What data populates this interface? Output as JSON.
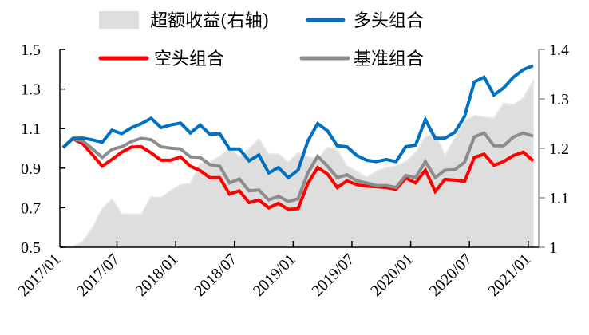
{
  "chart_data": {
    "type": "line",
    "title": "",
    "xlabel": "",
    "ylabel": "",
    "x": [
      "2017/01",
      "2017/02",
      "2017/03",
      "2017/04",
      "2017/05",
      "2017/06",
      "2017/07",
      "2017/08",
      "2017/09",
      "2017/10",
      "2017/11",
      "2017/12",
      "2018/01",
      "2018/02",
      "2018/03",
      "2018/04",
      "2018/05",
      "2018/06",
      "2018/07",
      "2018/08",
      "2018/09",
      "2018/10",
      "2018/11",
      "2018/12",
      "2019/01",
      "2019/02",
      "2019/03",
      "2019/04",
      "2019/05",
      "2019/06",
      "2019/07",
      "2019/08",
      "2019/09",
      "2019/10",
      "2019/11",
      "2019/12",
      "2020/01",
      "2020/02",
      "2020/03",
      "2020/04",
      "2020/05",
      "2020/06",
      "2020/07",
      "2020/08",
      "2020/09",
      "2020/10",
      "2020/11",
      "2020/12",
      "2021/01"
    ],
    "x_tick_labels": [
      "2017/01",
      "2017/07",
      "2018/01",
      "2018/07",
      "2019/01",
      "2019/07",
      "2020/01",
      "2020/07",
      "2021/01"
    ],
    "y_left": {
      "range": [
        0.5,
        1.5
      ],
      "ticks": [
        "0.5",
        "0.7",
        "0.9",
        "1.1",
        "1.3",
        "1.5"
      ]
    },
    "y_right": {
      "range": [
        1.0,
        1.4
      ],
      "ticks": [
        "1",
        "1.1",
        "1.2",
        "1.3",
        "1.4"
      ]
    },
    "grid": false,
    "legend_placement": "top",
    "series": [
      {
        "name": "超额收益(右轴)",
        "type": "area",
        "axis": "right",
        "color": "#dedede",
        "values": [
          1.0,
          1.001,
          1.011,
          1.038,
          1.078,
          1.097,
          1.067,
          1.067,
          1.067,
          1.102,
          1.1,
          1.114,
          1.126,
          1.129,
          1.169,
          1.172,
          1.183,
          1.199,
          1.183,
          1.199,
          1.218,
          1.188,
          1.188,
          1.172,
          1.191,
          1.183,
          1.177,
          1.202,
          1.196,
          1.164,
          1.153,
          1.141,
          1.153,
          1.161,
          1.164,
          1.173,
          1.191,
          1.223,
          1.229,
          1.185,
          1.22,
          1.255,
          1.266,
          1.263,
          1.261,
          1.291,
          1.288,
          1.301,
          1.336
        ]
      },
      {
        "name": "多头组合",
        "type": "line",
        "axis": "left",
        "color": "#0070c0",
        "values": [
          1.004,
          1.051,
          1.052,
          1.043,
          1.031,
          1.092,
          1.074,
          1.105,
          1.125,
          1.152,
          1.105,
          1.118,
          1.128,
          1.078,
          1.118,
          1.071,
          1.074,
          0.997,
          0.997,
          0.937,
          0.967,
          0.876,
          0.903,
          0.852,
          0.89,
          1.038,
          1.125,
          1.089,
          1.013,
          1.008,
          0.964,
          0.94,
          0.933,
          0.944,
          0.933,
          1.008,
          1.017,
          1.145,
          1.051,
          1.052,
          1.081,
          1.161,
          1.336,
          1.36,
          1.27,
          1.306,
          1.36,
          1.398,
          1.418
        ]
      },
      {
        "name": "空头组合",
        "type": "line",
        "axis": "left",
        "color": "#ff0000",
        "values": [
          1.004,
          1.048,
          1.024,
          0.968,
          0.91,
          0.944,
          0.981,
          1.007,
          1.008,
          0.977,
          0.94,
          0.94,
          0.957,
          0.91,
          0.887,
          0.852,
          0.852,
          0.769,
          0.785,
          0.726,
          0.739,
          0.699,
          0.722,
          0.691,
          0.695,
          0.823,
          0.903,
          0.87,
          0.802,
          0.836,
          0.816,
          0.809,
          0.806,
          0.802,
          0.793,
          0.85,
          0.825,
          0.89,
          0.782,
          0.843,
          0.839,
          0.833,
          0.954,
          0.971,
          0.914,
          0.933,
          0.964,
          0.981,
          0.937
        ]
      },
      {
        "name": "基准组合",
        "type": "line",
        "axis": "left",
        "color": "#8c8c8c",
        "values": [
          1.004,
          1.048,
          1.038,
          0.997,
          0.954,
          0.995,
          1.008,
          1.035,
          1.051,
          1.044,
          1.008,
          1.001,
          0.997,
          0.957,
          0.954,
          0.917,
          0.91,
          0.825,
          0.845,
          0.785,
          0.789,
          0.739,
          0.758,
          0.731,
          0.745,
          0.876,
          0.96,
          0.91,
          0.852,
          0.866,
          0.836,
          0.825,
          0.812,
          0.812,
          0.802,
          0.863,
          0.852,
          0.933,
          0.852,
          0.89,
          0.892,
          0.93,
          1.058,
          1.078,
          1.013,
          1.013,
          1.058,
          1.078,
          1.062
        ]
      }
    ]
  }
}
